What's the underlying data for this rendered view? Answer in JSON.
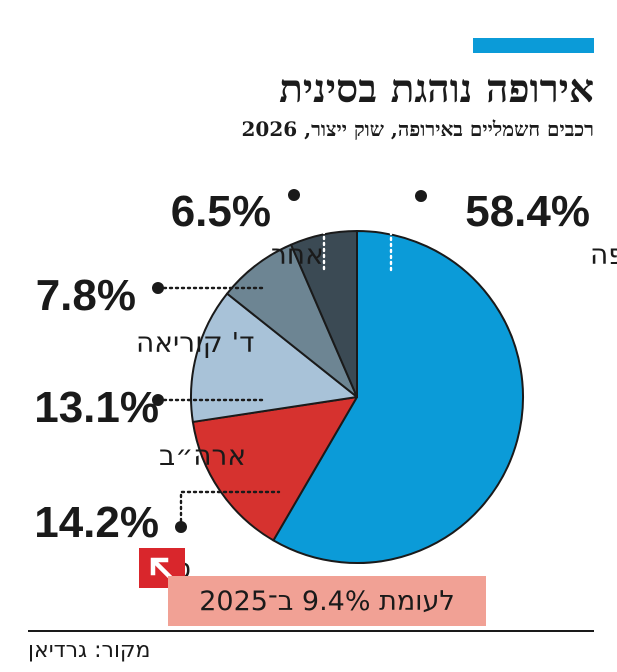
{
  "header": {
    "title": "אירופה נוהגת בסינית",
    "subtitle": "רכבים חשמליים באירופה, שוק ייצור, 2026"
  },
  "chart_data": {
    "type": "pie",
    "slices": [
      {
        "label": "אירופה",
        "value": 58.4,
        "value_label": "58.4%",
        "color": "#0b9bd8"
      },
      {
        "label": "סין",
        "value": 14.2,
        "value_label": "14.2%",
        "color": "#d6322f"
      },
      {
        "label": "ארה״ב",
        "value": 13.1,
        "value_label": "13.1%",
        "color": "#a8c2d8"
      },
      {
        "label": "ד' קוריאה",
        "value": 7.8,
        "value_label": "7.8%",
        "color": "#6d8593"
      },
      {
        "label": "אחר",
        "value": 6.5,
        "value_label": "6.5%",
        "color": "#3b4a54"
      }
    ]
  },
  "callout": {
    "text": "לעומת 9.4% ב־2025",
    "badge_color": "#d9262c",
    "box_color": "#f1a195",
    "icon": "arrow-up-left-icon"
  },
  "footer": {
    "source": "מקור: גרדיאן"
  }
}
